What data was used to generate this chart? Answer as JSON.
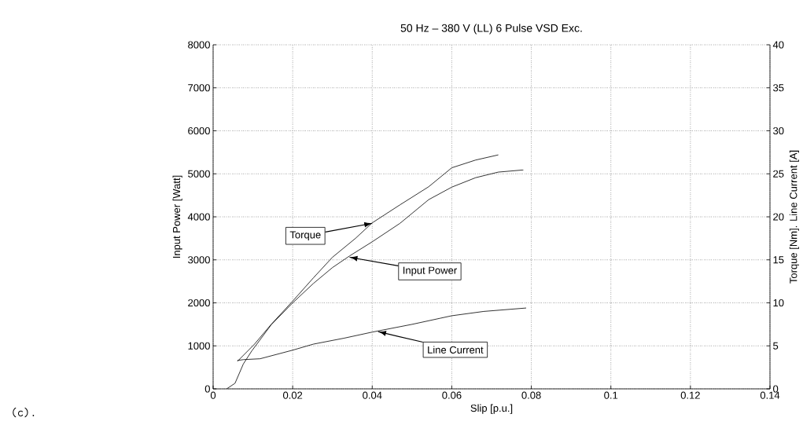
{
  "chart_data": {
    "type": "line",
    "title": "50 Hz – 380 V (LL) 6 Pulse VSD Exc.",
    "xlabel": "Slip [p.u.]",
    "ylabel": "Input Power   [Watt]",
    "y2label": "Torque [Nm].  Line Current [A]",
    "xlim": [
      0,
      0.14
    ],
    "xticks": [
      0,
      0.02,
      0.04,
      0.06,
      0.08,
      0.1,
      0.12,
      0.14
    ],
    "ylim": [
      0,
      8000
    ],
    "yticks": [
      0,
      1000,
      2000,
      3000,
      4000,
      5000,
      6000,
      7000,
      8000
    ],
    "y2lim": [
      0,
      40
    ],
    "y2ticks": [
      0,
      5,
      10,
      15,
      20,
      25,
      30,
      35,
      40
    ],
    "grid": true,
    "marker": "none",
    "line_style": "solid",
    "series": [
      {
        "color": "#000000",
        "axis": "y2",
        "x": [
          0.0061,
          0.0104,
          0.0146,
          0.02,
          0.0252,
          0.03,
          0.0358,
          0.04,
          0.047,
          0.0542,
          0.06,
          0.066,
          0.0717
        ],
        "values": [
          3.2,
          5.2,
          7.5,
          10.2,
          12.9,
          15.3,
          17.5,
          19.3,
          21.4,
          23.5,
          25.7,
          26.6,
          27.2
        ]
      },
      {
        "color": "#000000",
        "axis": "y",
        "x": [
          0.0034,
          0.0055,
          0.0076,
          0.0097,
          0.0146,
          0.02,
          0.0252,
          0.03,
          0.0343,
          0.04,
          0.047,
          0.0542,
          0.06,
          0.066,
          0.0717,
          0.078
        ],
        "values": [
          0,
          130,
          580,
          880,
          1490,
          2000,
          2450,
          2820,
          3090,
          3420,
          3850,
          4400,
          4690,
          4910,
          5040,
          5090
        ]
      },
      {
        "color": "#000000",
        "axis": "y2",
        "x": [
          0.0061,
          0.0076,
          0.0118,
          0.02,
          0.0252,
          0.033,
          0.04,
          0.05,
          0.057,
          0.06,
          0.068,
          0.0787
        ],
        "values": [
          3.3,
          3.4,
          3.5,
          4.5,
          5.2,
          5.9,
          6.6,
          7.5,
          8.2,
          8.5,
          9.0,
          9.4
        ]
      }
    ],
    "annotations": [
      {
        "text": "Torque",
        "x": 0.04,
        "y": 3850
      },
      {
        "text": "Input Power",
        "x": 0.0343,
        "y": 3060
      },
      {
        "text": "Line Current",
        "x": 0.0415,
        "y": 1330
      },
      "(c)."
    ]
  }
}
